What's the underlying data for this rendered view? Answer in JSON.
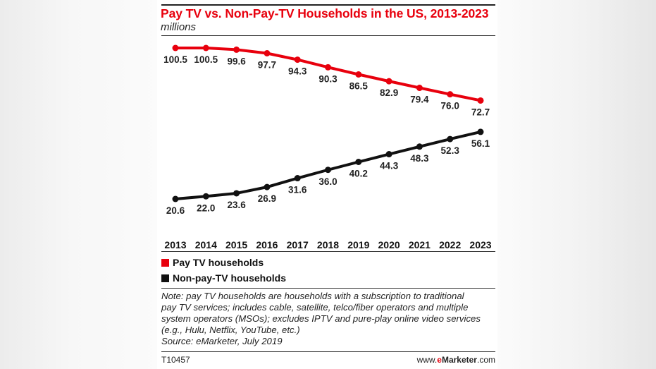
{
  "chart_data": {
    "type": "line",
    "title": "Pay TV vs. Non-Pay-TV Households in the US, 2013-2023",
    "subtitle": "millions",
    "categories": [
      "2013",
      "2014",
      "2015",
      "2016",
      "2017",
      "2018",
      "2019",
      "2020",
      "2021",
      "2022",
      "2023"
    ],
    "series": [
      {
        "name": "Pay TV households",
        "color": "#e8000d",
        "values": [
          100.5,
          100.5,
          99.6,
          97.7,
          94.3,
          90.3,
          86.5,
          82.9,
          79.4,
          76.0,
          72.7
        ],
        "labels": [
          "100.5",
          "100.5",
          "99.6",
          "97.7",
          "94.3",
          "90.3",
          "86.5",
          "82.9",
          "79.4",
          "76.0",
          "72.7"
        ]
      },
      {
        "name": "Non-pay-TV households",
        "color": "#111111",
        "values": [
          20.6,
          22.0,
          23.6,
          26.9,
          31.6,
          36.0,
          40.2,
          44.3,
          48.3,
          52.3,
          56.1
        ],
        "labels": [
          "20.6",
          "22.0",
          "23.6",
          "26.9",
          "31.6",
          "36.0",
          "40.2",
          "44.3",
          "48.3",
          "52.3",
          "56.1"
        ]
      }
    ],
    "legend_position": "bottom-left",
    "grid": false
  },
  "note": {
    "lines": [
      "Note: pay TV households are households with a subscription to traditional",
      "pay TV services; includes cable, satellite, telco/fiber operators and multiple",
      "system operators (MSOs); excludes IPTV and pure-play online video services",
      "(e.g., Hulu, Netflix, YouTube, etc.)",
      "Source: eMarketer, July 2019"
    ]
  },
  "footer": {
    "id": "T10457",
    "brand_prefix": "www.",
    "brand_e": "e",
    "brand_name": "Marketer",
    "brand_suffix": ".com"
  }
}
